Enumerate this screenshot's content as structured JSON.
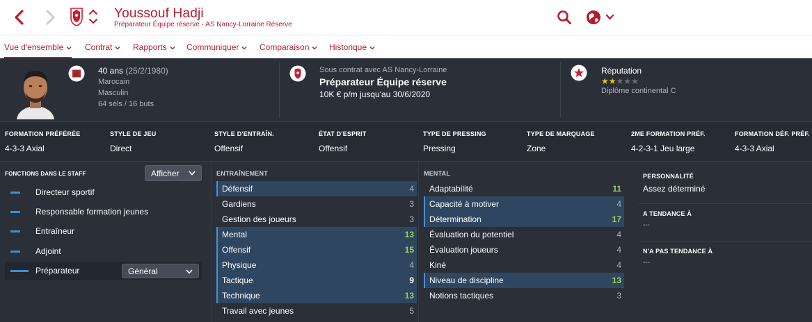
{
  "header": {
    "name": "Youssouf Hadji",
    "subtitle": "Préparateur Équipe réserve - AS Nancy-Lorraine Réserve"
  },
  "colors": {
    "accent": "#b41c2e",
    "highlight": "#3f8ed8",
    "good": "#9ad15c",
    "stars": "#e8c21a"
  },
  "icons": [
    "back-arrow-icon",
    "forward-arrow-icon",
    "club-badge-icon",
    "up-down-icon",
    "search-icon",
    "globe-icon",
    "chevron-down-icon",
    "flag-icon",
    "star-badge-icon"
  ],
  "menu": [
    {
      "label": "Vue d'ensemble",
      "active": true
    },
    {
      "label": "Contrat"
    },
    {
      "label": "Rapports"
    },
    {
      "label": "Communiquer"
    },
    {
      "label": "Comparaison"
    },
    {
      "label": "Historique"
    }
  ],
  "profile": {
    "age": "40 ans",
    "dob": "(25/2/1980)",
    "nationality": "Marocain",
    "gender": "Masculin",
    "caps": "64 séls / 16 buts"
  },
  "contract": {
    "under": "Sous contrat avec AS Nancy-Lorraine",
    "role": "Préparateur Équipe réserve",
    "wage": "10K € p/m jusqu'au 30/6/2020"
  },
  "reputation": {
    "label": "Réputation",
    "stars": 2,
    "max_stars": 5,
    "diploma": "Diplôme continental C"
  },
  "tactics": [
    {
      "head": "FORMATION PRÉFÉRÉE",
      "value": "4-3-3 Axial"
    },
    {
      "head": "STYLE DE JEU",
      "value": "Direct"
    },
    {
      "head": "STYLE D'ENTRAÎN.",
      "value": "Offensif"
    },
    {
      "head": "ÉTAT D'ESPRIT",
      "value": "Offensif"
    },
    {
      "head": "TYPE DE PRESSING",
      "value": "Pressing"
    },
    {
      "head": "TYPE DE MARQUAGE",
      "value": "Zone"
    },
    {
      "head": "2ME FORMATION PRÉF.",
      "value": "4-2-3-1 Jeu large"
    },
    {
      "head": "FORMATION DÉF. PRÉF.",
      "value": "4-3-3 Axial"
    }
  ],
  "staff": {
    "heading": "FONCTIONS DANS LE STAFF",
    "show_label": "Afficher",
    "roles": [
      {
        "label": "Directeur sportif"
      },
      {
        "label": "Responsable formation jeunes"
      },
      {
        "label": "Entraîneur"
      },
      {
        "label": "Adjoint"
      },
      {
        "label": "Préparateur",
        "selected": true,
        "option": "Général"
      }
    ]
  },
  "training": {
    "heading": "ENTRAÎNEMENT",
    "attrs": [
      {
        "name": "Défensif",
        "value": "4",
        "hl": true
      },
      {
        "name": "Gardiens",
        "value": "3"
      },
      {
        "name": "Gestion des joueurs",
        "value": "3"
      },
      {
        "name": "Mental",
        "value": "13",
        "hl": true,
        "tone": "good"
      },
      {
        "name": "Offensif",
        "value": "15",
        "hl": true,
        "tone": "good"
      },
      {
        "name": "Physique",
        "value": "4",
        "hl": true
      },
      {
        "name": "Tactique",
        "value": "9",
        "hl": true,
        "tone": "mid"
      },
      {
        "name": "Technique",
        "value": "13",
        "hl": true,
        "tone": "good"
      },
      {
        "name": "Travail avec jeunes",
        "value": "5"
      }
    ]
  },
  "mental": {
    "heading": "MENTAL",
    "attrs": [
      {
        "name": "Adaptabilité",
        "value": "11",
        "tone": "good"
      },
      {
        "name": "Capacité à motiver",
        "value": "4",
        "hl": true
      },
      {
        "name": "Détermination",
        "value": "17",
        "hl": true,
        "tone": "good"
      },
      {
        "name": "Évaluation du potentiel",
        "value": "4"
      },
      {
        "name": "Évaluation joueurs",
        "value": "4"
      },
      {
        "name": "Kiné",
        "value": "4"
      },
      {
        "name": "Niveau de discipline",
        "value": "13",
        "hl": true,
        "tone": "good"
      },
      {
        "name": "Notions tactiques",
        "value": "3"
      }
    ]
  },
  "personality": {
    "heading": "PERSONNALITÉ",
    "value": "Assez déterminé",
    "tends_heading": "A TENDANCE À",
    "tends_value": "---",
    "not_tends_heading": "N'A PAS TENDANCE À",
    "not_tends_value": "---"
  }
}
